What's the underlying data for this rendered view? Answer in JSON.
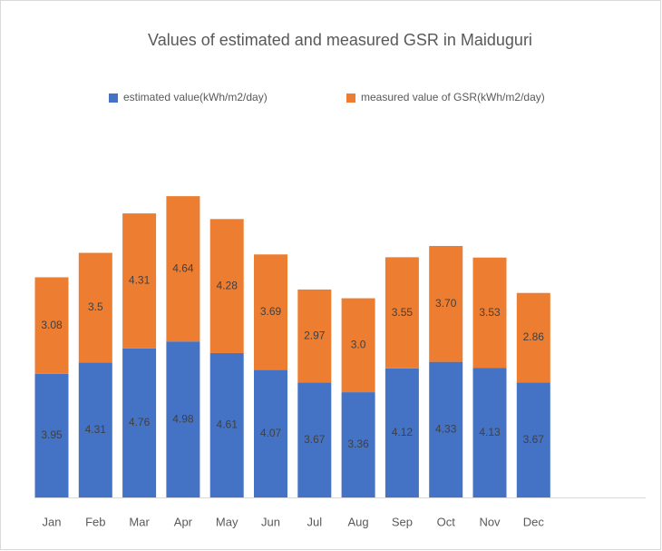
{
  "chart_data": {
    "type": "stacked_bar",
    "title": "Values of estimated and measured GSR in Maiduguri",
    "categories": [
      "Jan",
      "Feb",
      "Mar",
      "Apr",
      "May",
      "Jun",
      "Jul",
      "Aug",
      "Sep",
      "Oct",
      "Nov",
      "Dec"
    ],
    "series": [
      {
        "name": "estimated value(kWh/m2/day)",
        "color": "#4472c4",
        "values": [
          3.95,
          4.31,
          4.76,
          4.98,
          4.61,
          4.07,
          3.67,
          3.36,
          4.12,
          4.33,
          4.13,
          3.67
        ]
      },
      {
        "name": "measured value of GSR(kWh/m2/day)",
        "color": "#ed7d31",
        "values": [
          3.08,
          3.5,
          4.31,
          4.64,
          4.28,
          3.69,
          2.97,
          3,
          3.55,
          3.7,
          3.53,
          2.86
        ],
        "value_labels": [
          "3.08",
          "3.5",
          "4.31",
          "4.64",
          "4.28",
          "3.69",
          "2.97",
          "3.0",
          "3.55",
          "3.70",
          "3.53",
          "2.86"
        ]
      }
    ],
    "legend": "top"
  }
}
